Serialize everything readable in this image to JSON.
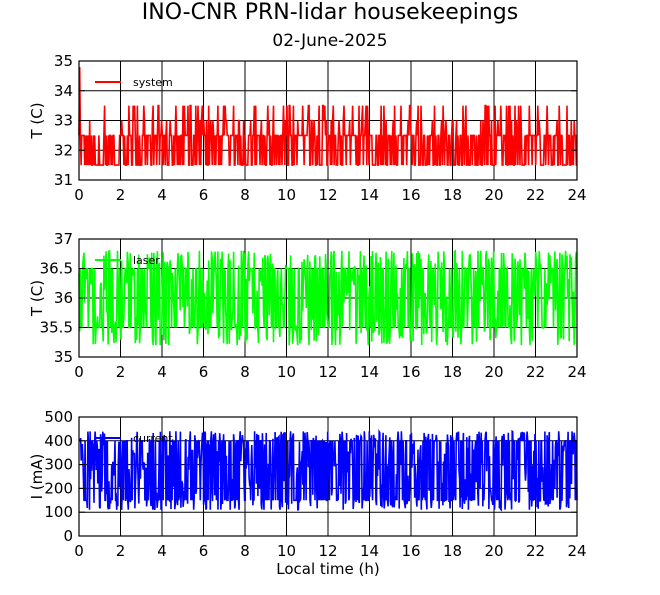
{
  "header": {
    "title": "INO-CNR PRN-lidar housekeepings",
    "subtitle": "02-June-2025"
  },
  "chart_data": [
    {
      "type": "line",
      "ylabel": "T (C)",
      "xlabel": "",
      "xlim": [
        0,
        24
      ],
      "ylim": [
        31,
        35
      ],
      "xticks": [
        "0",
        "2",
        "4",
        "6",
        "8",
        "10",
        "12",
        "14",
        "16",
        "18",
        "20",
        "22",
        "24"
      ],
      "yticks": [
        "31",
        "32",
        "33",
        "34",
        "35"
      ],
      "grid": true,
      "legend_position": "top-left",
      "series": [
        {
          "name": "system",
          "color": "#ff0000",
          "low": 31.5,
          "high": 32.5,
          "spike_to": 33.5,
          "spike_rate": 0.18,
          "start_spike": 34.8,
          "samples": 700
        }
      ]
    },
    {
      "type": "line",
      "ylabel": "T (C)",
      "xlabel": "",
      "xlim": [
        0,
        24
      ],
      "ylim": [
        35,
        37
      ],
      "xticks": [
        "0",
        "2",
        "4",
        "6",
        "8",
        "10",
        "12",
        "14",
        "16",
        "18",
        "20",
        "22",
        "24"
      ],
      "yticks": [
        "35",
        "35.5",
        "36",
        "36.5",
        "37"
      ],
      "grid": true,
      "legend_position": "top-left",
      "series": [
        {
          "name": "laser",
          "color": "#00ff00",
          "low": 35.5,
          "high": 36.5,
          "min": 35.2,
          "max": 36.8,
          "samples": 700
        }
      ]
    },
    {
      "type": "line",
      "ylabel": "I (mA)",
      "xlabel": "Local time (h)",
      "xlim": [
        0,
        24
      ],
      "ylim": [
        0,
        500
      ],
      "xticks": [
        "0",
        "2",
        "4",
        "6",
        "8",
        "10",
        "12",
        "14",
        "16",
        "18",
        "20",
        "22",
        "24"
      ],
      "yticks": [
        "0",
        "100",
        "200",
        "300",
        "400",
        "500"
      ],
      "grid": true,
      "legend_position": "top-left",
      "series": [
        {
          "name": "current",
          "color": "#0000ff",
          "low": 150,
          "high": 400,
          "min": 110,
          "max": 440,
          "samples": 900
        }
      ]
    }
  ]
}
